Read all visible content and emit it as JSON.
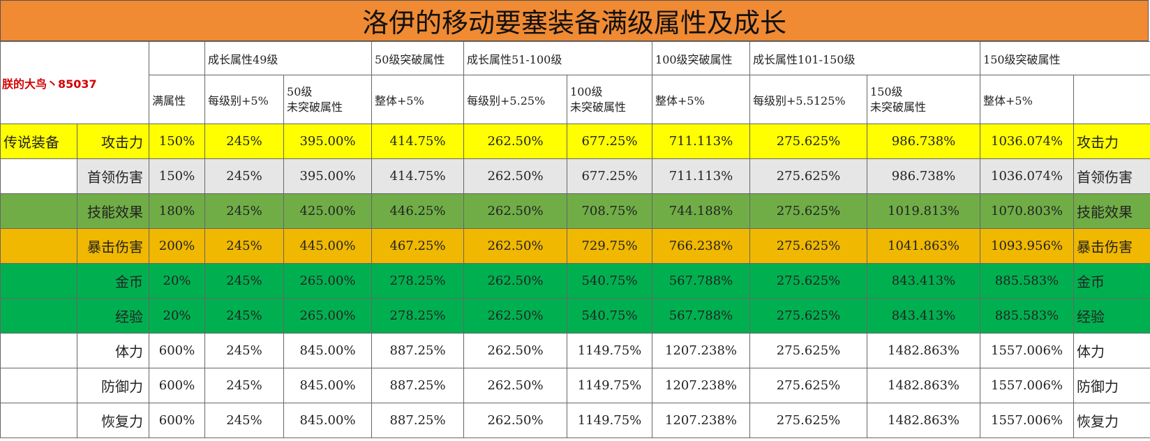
{
  "title": "洛伊的移动要塞装备满级属性及成长",
  "brand": "朕的大鸟丶85037",
  "header_top": [
    "",
    "",
    "成长属性49级",
    "",
    "50级突破属性",
    "成长属性51-100级",
    "",
    "100级突破属性",
    "成长属性101-150级",
    "",
    "150级突破属性",
    ""
  ],
  "header_sub": {
    "full": "满属性",
    "c49": "每级别+5%",
    "c50a": "50级",
    "c50b": "未突破属性",
    "b50": "整体+5%",
    "c51": "每级别+5.25%",
    "c100a": "100级",
    "c100b": "未突破属性",
    "b100": "整体+5%",
    "c101": "每级别+5.5125%",
    "c150a": "150级",
    "c150b": "未突破属性",
    "b150": "整体+5%"
  },
  "category": "传说装备",
  "rows": [
    {
      "name": "攻击力",
      "vals": [
        "150%",
        "245%",
        "395.00%",
        "414.75%",
        "262.50%",
        "677.25%",
        "711.113%",
        "275.625%",
        "986.738%",
        "1036.074%"
      ],
      "color": "#ffff00"
    },
    {
      "name": "首领伤害",
      "vals": [
        "150%",
        "245%",
        "395.00%",
        "414.75%",
        "262.50%",
        "677.25%",
        "711.113%",
        "275.625%",
        "986.738%",
        "1036.074%"
      ],
      "color": "#e6e6e6"
    },
    {
      "name": "技能效果",
      "vals": [
        "180%",
        "245%",
        "425.00%",
        "446.25%",
        "262.50%",
        "708.75%",
        "744.188%",
        "275.625%",
        "1019.813%",
        "1070.803%"
      ],
      "color": "#70ad47"
    },
    {
      "name": "暴击伤害",
      "vals": [
        "200%",
        "245%",
        "445.00%",
        "467.25%",
        "262.50%",
        "729.75%",
        "766.238%",
        "275.625%",
        "1041.863%",
        "1093.956%"
      ],
      "color": "#f0b800"
    },
    {
      "name": "金币",
      "vals": [
        "20%",
        "245%",
        "265.00%",
        "278.25%",
        "262.50%",
        "540.75%",
        "567.788%",
        "275.625%",
        "843.413%",
        "885.583%"
      ],
      "color": "#00b050"
    },
    {
      "name": "经验",
      "vals": [
        "20%",
        "245%",
        "265.00%",
        "278.25%",
        "262.50%",
        "540.75%",
        "567.788%",
        "275.625%",
        "843.413%",
        "885.583%"
      ],
      "color": "#00b050"
    },
    {
      "name": "体力",
      "vals": [
        "600%",
        "245%",
        "845.00%",
        "887.25%",
        "262.50%",
        "1149.75%",
        "1207.238%",
        "275.625%",
        "1482.863%",
        "1557.006%"
      ],
      "color": "#ffffff"
    },
    {
      "name": "防御力",
      "vals": [
        "600%",
        "245%",
        "845.00%",
        "887.25%",
        "262.50%",
        "1149.75%",
        "1207.238%",
        "275.625%",
        "1482.863%",
        "1557.006%"
      ],
      "color": "#ffffff"
    },
    {
      "name": "恢复力",
      "vals": [
        "600%",
        "245%",
        "845.00%",
        "887.25%",
        "262.50%",
        "1149.75%",
        "1207.238%",
        "275.625%",
        "1482.863%",
        "1557.006%"
      ],
      "color": "#ffffff"
    }
  ]
}
